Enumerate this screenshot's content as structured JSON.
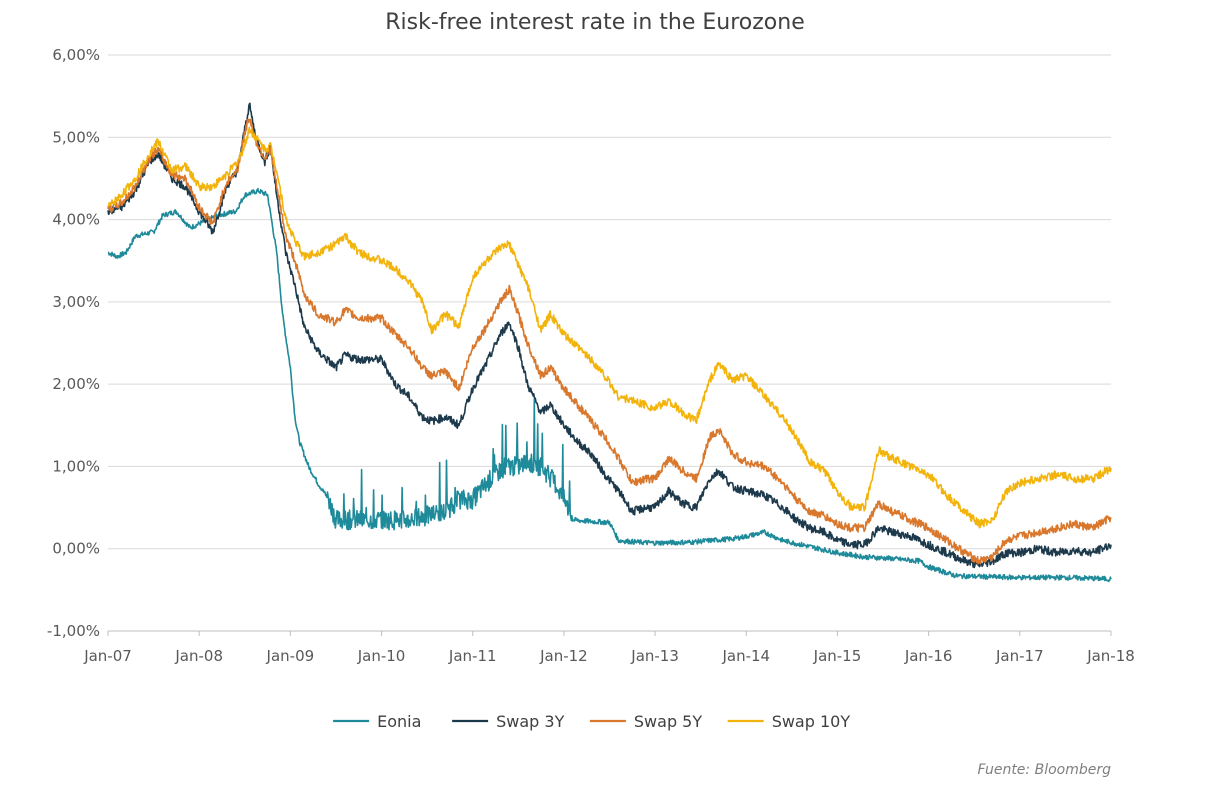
{
  "chart_data": {
    "type": "line",
    "title": "Risk-free interest rate in the Eurozone",
    "source": "Fuente: Bloomberg",
    "xlabel": "",
    "ylabel": "",
    "x_range": [
      "2007-01",
      "2018-01"
    ],
    "ylim": [
      -1.0,
      6.0
    ],
    "y_ticks": [
      "6,00%",
      "5,00%",
      "4,00%",
      "3,00%",
      "2,00%",
      "1,00%",
      "0,00%",
      "-1,00%"
    ],
    "y_tick_values": [
      6,
      5,
      4,
      3,
      2,
      1,
      0,
      -1
    ],
    "x_ticks": [
      "Jan-07",
      "Jan-08",
      "Jan-09",
      "Jan-10",
      "Jan-11",
      "Jan-12",
      "Jan-13",
      "Jan-14",
      "Jan-15",
      "Jan-16",
      "Jan-17",
      "Jan-18"
    ],
    "x_tick_values": [
      2007,
      2008,
      2009,
      2010,
      2011,
      2012,
      2013,
      2014,
      2015,
      2016,
      2017,
      2018
    ],
    "grid": true,
    "legend_position": "bottom",
    "series": [
      {
        "name": "Eonia",
        "color": "#1f8a9a",
        "points": [
          [
            2007.0,
            3.6
          ],
          [
            2007.1,
            3.55
          ],
          [
            2007.2,
            3.6
          ],
          [
            2007.3,
            3.8
          ],
          [
            2007.5,
            3.85
          ],
          [
            2007.6,
            4.05
          ],
          [
            2007.75,
            4.1
          ],
          [
            2007.9,
            3.9
          ],
          [
            2008.0,
            3.95
          ],
          [
            2008.2,
            4.05
          ],
          [
            2008.4,
            4.1
          ],
          [
            2008.5,
            4.3
          ],
          [
            2008.65,
            4.35
          ],
          [
            2008.75,
            4.3
          ],
          [
            2008.85,
            3.6
          ],
          [
            2008.92,
            2.8
          ],
          [
            2009.0,
            2.2
          ],
          [
            2009.05,
            1.6
          ],
          [
            2009.1,
            1.3
          ],
          [
            2009.2,
            1.0
          ],
          [
            2009.3,
            0.8
          ],
          [
            2009.42,
            0.6
          ],
          [
            2009.5,
            0.35
          ],
          [
            2009.7,
            0.35
          ],
          [
            2010.0,
            0.35
          ],
          [
            2010.3,
            0.35
          ],
          [
            2010.5,
            0.4
          ],
          [
            2010.7,
            0.45
          ],
          [
            2010.85,
            0.6
          ],
          [
            2011.0,
            0.6
          ],
          [
            2011.2,
            0.85
          ],
          [
            2011.35,
            1.0
          ],
          [
            2011.5,
            1.0
          ],
          [
            2011.6,
            1.05
          ],
          [
            2011.75,
            1.0
          ],
          [
            2011.9,
            0.8
          ],
          [
            2012.0,
            0.6
          ],
          [
            2012.1,
            0.35
          ],
          [
            2012.3,
            0.33
          ],
          [
            2012.5,
            0.32
          ],
          [
            2012.6,
            0.1
          ],
          [
            2012.8,
            0.08
          ],
          [
            2013.0,
            0.07
          ],
          [
            2013.4,
            0.08
          ],
          [
            2013.6,
            0.1
          ],
          [
            2013.85,
            0.12
          ],
          [
            2014.0,
            0.15
          ],
          [
            2014.2,
            0.2
          ],
          [
            2014.4,
            0.1
          ],
          [
            2014.6,
            0.05
          ],
          [
            2014.8,
            0.0
          ],
          [
            2015.0,
            -0.05
          ],
          [
            2015.3,
            -0.1
          ],
          [
            2015.6,
            -0.12
          ],
          [
            2015.9,
            -0.15
          ],
          [
            2016.0,
            -0.22
          ],
          [
            2016.3,
            -0.33
          ],
          [
            2016.6,
            -0.34
          ],
          [
            2017.0,
            -0.35
          ],
          [
            2017.5,
            -0.35
          ],
          [
            2017.8,
            -0.36
          ],
          [
            2018.0,
            -0.37
          ]
        ]
      },
      {
        "name": "Swap 3Y",
        "color": "#1d3a4c",
        "points": [
          [
            2007.0,
            4.1
          ],
          [
            2007.15,
            4.15
          ],
          [
            2007.3,
            4.35
          ],
          [
            2007.45,
            4.7
          ],
          [
            2007.55,
            4.8
          ],
          [
            2007.7,
            4.5
          ],
          [
            2007.85,
            4.4
          ],
          [
            2008.0,
            4.1
          ],
          [
            2008.15,
            3.85
          ],
          [
            2008.3,
            4.4
          ],
          [
            2008.42,
            4.6
          ],
          [
            2008.5,
            5.1
          ],
          [
            2008.55,
            5.4
          ],
          [
            2008.62,
            5.0
          ],
          [
            2008.72,
            4.7
          ],
          [
            2008.78,
            4.9
          ],
          [
            2008.85,
            4.3
          ],
          [
            2008.95,
            3.6
          ],
          [
            2009.05,
            3.2
          ],
          [
            2009.15,
            2.7
          ],
          [
            2009.3,
            2.4
          ],
          [
            2009.5,
            2.2
          ],
          [
            2009.6,
            2.35
          ],
          [
            2009.75,
            2.3
          ],
          [
            2010.0,
            2.3
          ],
          [
            2010.15,
            2.0
          ],
          [
            2010.3,
            1.85
          ],
          [
            2010.45,
            1.6
          ],
          [
            2010.55,
            1.55
          ],
          [
            2010.7,
            1.6
          ],
          [
            2010.85,
            1.5
          ],
          [
            2011.0,
            1.95
          ],
          [
            2011.15,
            2.25
          ],
          [
            2011.3,
            2.6
          ],
          [
            2011.4,
            2.75
          ],
          [
            2011.5,
            2.45
          ],
          [
            2011.6,
            2.0
          ],
          [
            2011.75,
            1.65
          ],
          [
            2011.85,
            1.75
          ],
          [
            2012.0,
            1.5
          ],
          [
            2012.15,
            1.3
          ],
          [
            2012.3,
            1.15
          ],
          [
            2012.45,
            0.9
          ],
          [
            2012.6,
            0.7
          ],
          [
            2012.75,
            0.45
          ],
          [
            2012.9,
            0.5
          ],
          [
            2013.0,
            0.5
          ],
          [
            2013.15,
            0.7
          ],
          [
            2013.3,
            0.55
          ],
          [
            2013.45,
            0.5
          ],
          [
            2013.6,
            0.85
          ],
          [
            2013.7,
            0.95
          ],
          [
            2013.85,
            0.75
          ],
          [
            2014.0,
            0.7
          ],
          [
            2014.2,
            0.65
          ],
          [
            2014.4,
            0.5
          ],
          [
            2014.55,
            0.35
          ],
          [
            2014.7,
            0.25
          ],
          [
            2014.85,
            0.2
          ],
          [
            2015.0,
            0.1
          ],
          [
            2015.15,
            0.05
          ],
          [
            2015.3,
            0.05
          ],
          [
            2015.45,
            0.25
          ],
          [
            2015.6,
            0.2
          ],
          [
            2015.8,
            0.15
          ],
          [
            2016.0,
            0.05
          ],
          [
            2016.2,
            -0.05
          ],
          [
            2016.4,
            -0.15
          ],
          [
            2016.55,
            -0.2
          ],
          [
            2016.7,
            -0.15
          ],
          [
            2016.85,
            -0.05
          ],
          [
            2017.0,
            -0.05
          ],
          [
            2017.2,
            0.0
          ],
          [
            2017.4,
            -0.05
          ],
          [
            2017.6,
            -0.02
          ],
          [
            2017.8,
            -0.05
          ],
          [
            2018.0,
            0.05
          ]
        ]
      },
      {
        "name": "Swap 5Y",
        "color": "#d9782d",
        "points": [
          [
            2007.0,
            4.12
          ],
          [
            2007.15,
            4.2
          ],
          [
            2007.3,
            4.4
          ],
          [
            2007.45,
            4.75
          ],
          [
            2007.55,
            4.85
          ],
          [
            2007.7,
            4.55
          ],
          [
            2007.85,
            4.5
          ],
          [
            2008.0,
            4.15
          ],
          [
            2008.15,
            3.95
          ],
          [
            2008.3,
            4.45
          ],
          [
            2008.42,
            4.6
          ],
          [
            2008.5,
            5.05
          ],
          [
            2008.55,
            5.25
          ],
          [
            2008.62,
            4.95
          ],
          [
            2008.72,
            4.75
          ],
          [
            2008.78,
            4.85
          ],
          [
            2008.85,
            4.4
          ],
          [
            2008.95,
            3.8
          ],
          [
            2009.05,
            3.5
          ],
          [
            2009.15,
            3.1
          ],
          [
            2009.3,
            2.85
          ],
          [
            2009.5,
            2.75
          ],
          [
            2009.6,
            2.9
          ],
          [
            2009.75,
            2.8
          ],
          [
            2010.0,
            2.8
          ],
          [
            2010.15,
            2.6
          ],
          [
            2010.3,
            2.45
          ],
          [
            2010.45,
            2.2
          ],
          [
            2010.55,
            2.1
          ],
          [
            2010.7,
            2.15
          ],
          [
            2010.85,
            1.95
          ],
          [
            2011.0,
            2.45
          ],
          [
            2011.15,
            2.7
          ],
          [
            2011.3,
            3.0
          ],
          [
            2011.4,
            3.15
          ],
          [
            2011.5,
            2.85
          ],
          [
            2011.6,
            2.5
          ],
          [
            2011.75,
            2.1
          ],
          [
            2011.85,
            2.2
          ],
          [
            2012.0,
            1.95
          ],
          [
            2012.15,
            1.75
          ],
          [
            2012.3,
            1.55
          ],
          [
            2012.45,
            1.35
          ],
          [
            2012.6,
            1.1
          ],
          [
            2012.75,
            0.8
          ],
          [
            2012.9,
            0.85
          ],
          [
            2013.0,
            0.85
          ],
          [
            2013.15,
            1.1
          ],
          [
            2013.3,
            0.95
          ],
          [
            2013.45,
            0.85
          ],
          [
            2013.6,
            1.35
          ],
          [
            2013.7,
            1.45
          ],
          [
            2013.85,
            1.15
          ],
          [
            2014.0,
            1.05
          ],
          [
            2014.2,
            1.0
          ],
          [
            2014.4,
            0.8
          ],
          [
            2014.55,
            0.6
          ],
          [
            2014.7,
            0.45
          ],
          [
            2014.85,
            0.4
          ],
          [
            2015.0,
            0.3
          ],
          [
            2015.15,
            0.25
          ],
          [
            2015.3,
            0.25
          ],
          [
            2015.45,
            0.55
          ],
          [
            2015.6,
            0.45
          ],
          [
            2015.8,
            0.35
          ],
          [
            2016.0,
            0.25
          ],
          [
            2016.2,
            0.1
          ],
          [
            2016.4,
            -0.05
          ],
          [
            2016.55,
            -0.15
          ],
          [
            2016.7,
            -0.1
          ],
          [
            2016.85,
            0.1
          ],
          [
            2017.0,
            0.15
          ],
          [
            2017.2,
            0.2
          ],
          [
            2017.4,
            0.25
          ],
          [
            2017.6,
            0.3
          ],
          [
            2017.8,
            0.25
          ],
          [
            2018.0,
            0.38
          ]
        ]
      },
      {
        "name": "Swap 10Y",
        "color": "#f2b40c",
        "points": [
          [
            2007.0,
            4.15
          ],
          [
            2007.15,
            4.3
          ],
          [
            2007.3,
            4.5
          ],
          [
            2007.45,
            4.8
          ],
          [
            2007.55,
            4.95
          ],
          [
            2007.7,
            4.6
          ],
          [
            2007.85,
            4.65
          ],
          [
            2008.0,
            4.4
          ],
          [
            2008.15,
            4.4
          ],
          [
            2008.3,
            4.55
          ],
          [
            2008.42,
            4.7
          ],
          [
            2008.5,
            4.9
          ],
          [
            2008.55,
            5.1
          ],
          [
            2008.62,
            5.0
          ],
          [
            2008.72,
            4.85
          ],
          [
            2008.78,
            4.9
          ],
          [
            2008.85,
            4.6
          ],
          [
            2008.95,
            4.0
          ],
          [
            2009.05,
            3.75
          ],
          [
            2009.15,
            3.55
          ],
          [
            2009.3,
            3.6
          ],
          [
            2009.5,
            3.7
          ],
          [
            2009.6,
            3.8
          ],
          [
            2009.75,
            3.6
          ],
          [
            2010.0,
            3.5
          ],
          [
            2010.15,
            3.4
          ],
          [
            2010.3,
            3.25
          ],
          [
            2010.45,
            3.0
          ],
          [
            2010.55,
            2.65
          ],
          [
            2010.7,
            2.85
          ],
          [
            2010.85,
            2.7
          ],
          [
            2011.0,
            3.3
          ],
          [
            2011.15,
            3.5
          ],
          [
            2011.3,
            3.65
          ],
          [
            2011.4,
            3.7
          ],
          [
            2011.5,
            3.45
          ],
          [
            2011.6,
            3.2
          ],
          [
            2011.75,
            2.65
          ],
          [
            2011.85,
            2.85
          ],
          [
            2012.0,
            2.6
          ],
          [
            2012.15,
            2.45
          ],
          [
            2012.3,
            2.3
          ],
          [
            2012.45,
            2.1
          ],
          [
            2012.6,
            1.85
          ],
          [
            2012.75,
            1.8
          ],
          [
            2012.9,
            1.75
          ],
          [
            2013.0,
            1.7
          ],
          [
            2013.15,
            1.8
          ],
          [
            2013.3,
            1.65
          ],
          [
            2013.45,
            1.55
          ],
          [
            2013.6,
            2.05
          ],
          [
            2013.7,
            2.25
          ],
          [
            2013.85,
            2.05
          ],
          [
            2014.0,
            2.1
          ],
          [
            2014.2,
            1.85
          ],
          [
            2014.4,
            1.6
          ],
          [
            2014.55,
            1.35
          ],
          [
            2014.7,
            1.05
          ],
          [
            2014.85,
            0.95
          ],
          [
            2015.0,
            0.7
          ],
          [
            2015.15,
            0.5
          ],
          [
            2015.3,
            0.5
          ],
          [
            2015.45,
            1.2
          ],
          [
            2015.6,
            1.1
          ],
          [
            2015.8,
            1.0
          ],
          [
            2016.0,
            0.9
          ],
          [
            2016.2,
            0.65
          ],
          [
            2016.4,
            0.45
          ],
          [
            2016.55,
            0.3
          ],
          [
            2016.7,
            0.35
          ],
          [
            2016.85,
            0.7
          ],
          [
            2017.0,
            0.8
          ],
          [
            2017.2,
            0.85
          ],
          [
            2017.4,
            0.9
          ],
          [
            2017.6,
            0.85
          ],
          [
            2017.8,
            0.85
          ],
          [
            2018.0,
            0.98
          ]
        ]
      }
    ]
  }
}
